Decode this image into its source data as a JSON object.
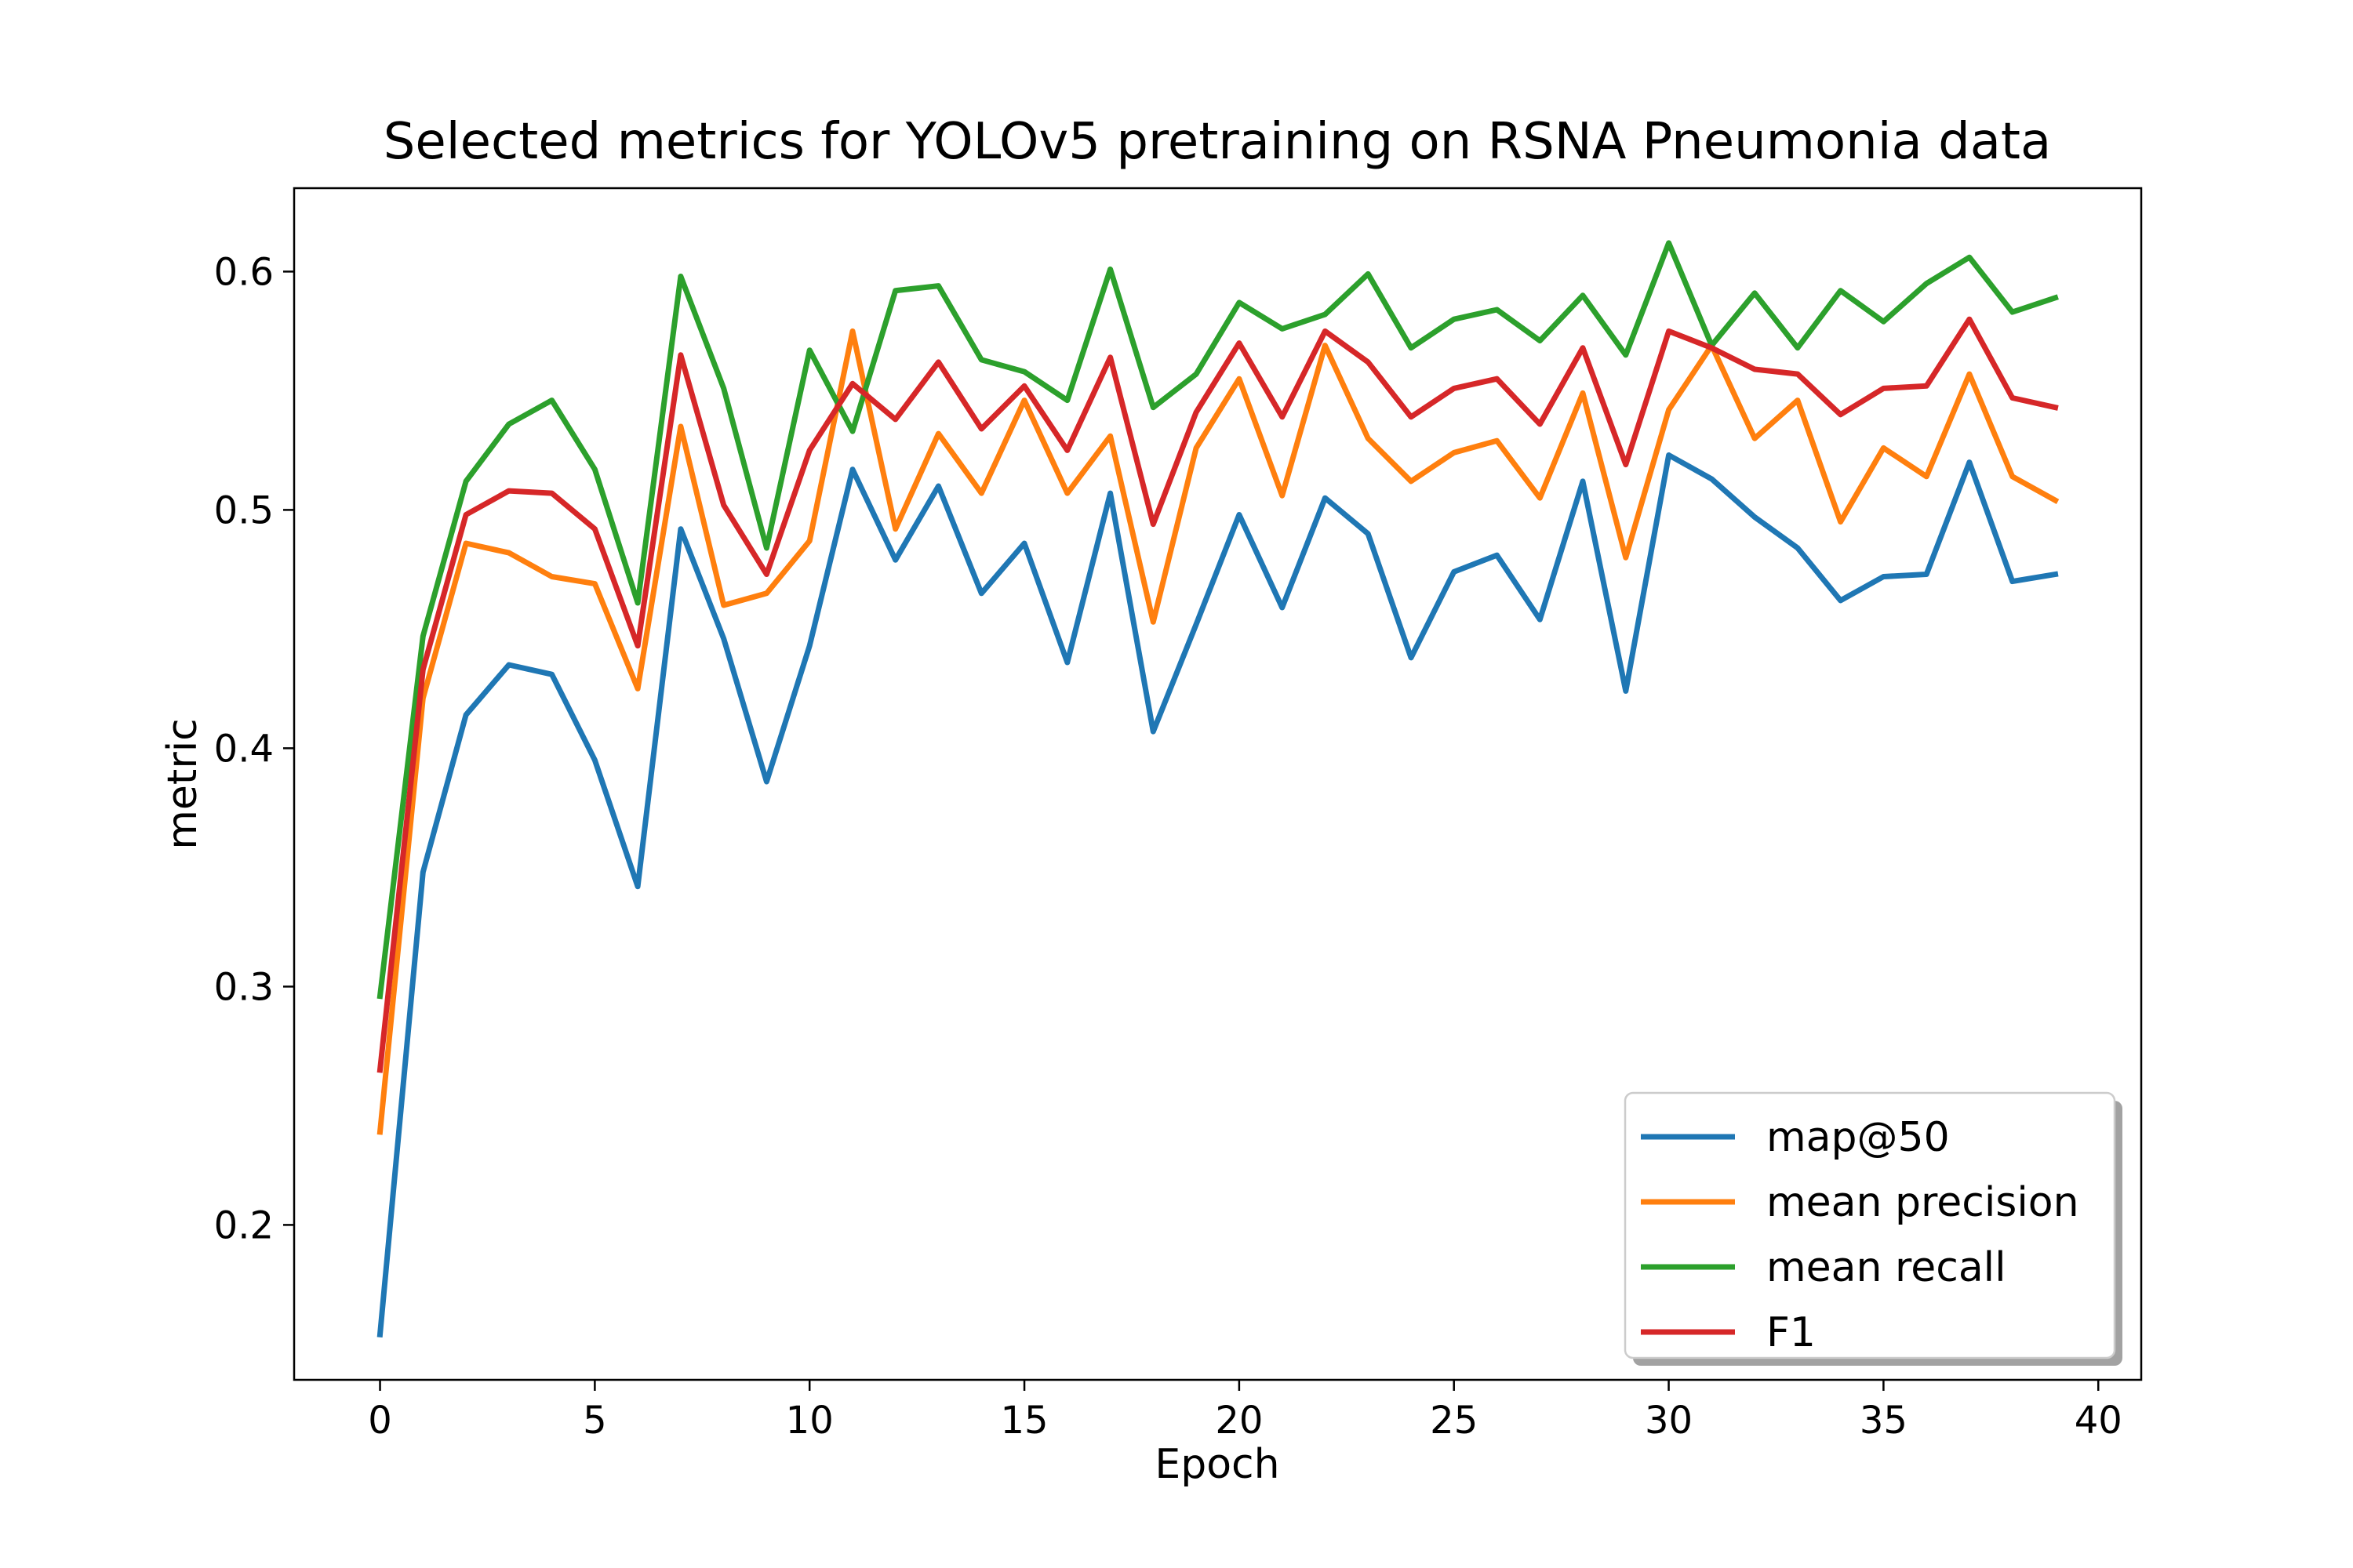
{
  "chart_data": {
    "type": "line",
    "title": "Selected metrics for YOLOv5 pretraining on RSNA Pneumonia data",
    "xlabel": "Epoch",
    "ylabel": "metric",
    "xlim": [
      -2,
      41
    ],
    "ylim": [
      0.135,
      0.635
    ],
    "xticks": [
      0,
      5,
      10,
      15,
      20,
      25,
      30,
      35,
      40
    ],
    "yticks": [
      0.2,
      0.3,
      0.4,
      0.5,
      0.6
    ],
    "xtick_labels": [
      "0",
      "5",
      "10",
      "15",
      "20",
      "25",
      "30",
      "35",
      "40"
    ],
    "ytick_labels": [
      "0.2",
      "0.3",
      "0.4",
      "0.5",
      "0.6"
    ],
    "grid": false,
    "legend_position": "bottom-right",
    "x": [
      0,
      1,
      2,
      3,
      4,
      5,
      6,
      7,
      8,
      9,
      10,
      11,
      12,
      13,
      14,
      15,
      16,
      17,
      18,
      19,
      20,
      21,
      22,
      23,
      24,
      25,
      26,
      27,
      28,
      29,
      30,
      31,
      32,
      33,
      34,
      35,
      36,
      37,
      38,
      39
    ],
    "series": [
      {
        "name": "map@50",
        "color": "#1f77b4",
        "values": [
          0.154,
          0.348,
          0.414,
          0.435,
          0.431,
          0.395,
          0.342,
          0.492,
          0.446,
          0.386,
          0.443,
          0.517,
          0.479,
          0.51,
          0.465,
          0.486,
          0.436,
          0.507,
          0.407,
          0.452,
          0.498,
          0.459,
          0.505,
          0.49,
          0.438,
          0.474,
          0.481,
          0.454,
          0.512,
          0.424,
          0.523,
          0.513,
          0.497,
          0.484,
          0.462,
          0.472,
          0.473,
          0.52,
          0.47,
          0.473
        ]
      },
      {
        "name": "mean precision",
        "color": "#ff7f0e",
        "values": [
          0.239,
          0.421,
          0.486,
          0.482,
          0.472,
          0.469,
          0.425,
          0.535,
          0.46,
          0.465,
          0.487,
          0.575,
          0.492,
          0.532,
          0.507,
          0.546,
          0.507,
          0.531,
          0.453,
          0.526,
          0.555,
          0.506,
          0.569,
          0.53,
          0.512,
          0.524,
          0.529,
          0.505,
          0.549,
          0.48,
          0.542,
          0.569,
          0.53,
          0.546,
          0.495,
          0.526,
          0.514,
          0.557,
          0.514,
          0.504
        ]
      },
      {
        "name": "mean recall",
        "color": "#2ca02c",
        "values": [
          0.296,
          0.447,
          0.512,
          0.536,
          0.546,
          0.517,
          0.461,
          0.598,
          0.551,
          0.484,
          0.567,
          0.533,
          0.592,
          0.594,
          0.563,
          0.558,
          0.546,
          0.601,
          0.543,
          0.557,
          0.587,
          0.576,
          0.582,
          0.599,
          0.568,
          0.58,
          0.584,
          0.571,
          0.59,
          0.565,
          0.612,
          0.569,
          0.591,
          0.568,
          0.592,
          0.579,
          0.595,
          0.606,
          0.583,
          0.589
        ]
      },
      {
        "name": "F1",
        "color": "#d62728",
        "values": [
          0.265,
          0.433,
          0.498,
          0.508,
          0.507,
          0.492,
          0.443,
          0.565,
          0.502,
          0.473,
          0.525,
          0.553,
          0.538,
          0.562,
          0.534,
          0.552,
          0.525,
          0.564,
          0.494,
          0.541,
          0.57,
          0.539,
          0.575,
          0.562,
          0.539,
          0.551,
          0.555,
          0.536,
          0.568,
          0.519,
          0.575,
          0.568,
          0.559,
          0.557,
          0.54,
          0.551,
          0.552,
          0.58,
          0.547,
          0.543
        ]
      }
    ]
  }
}
